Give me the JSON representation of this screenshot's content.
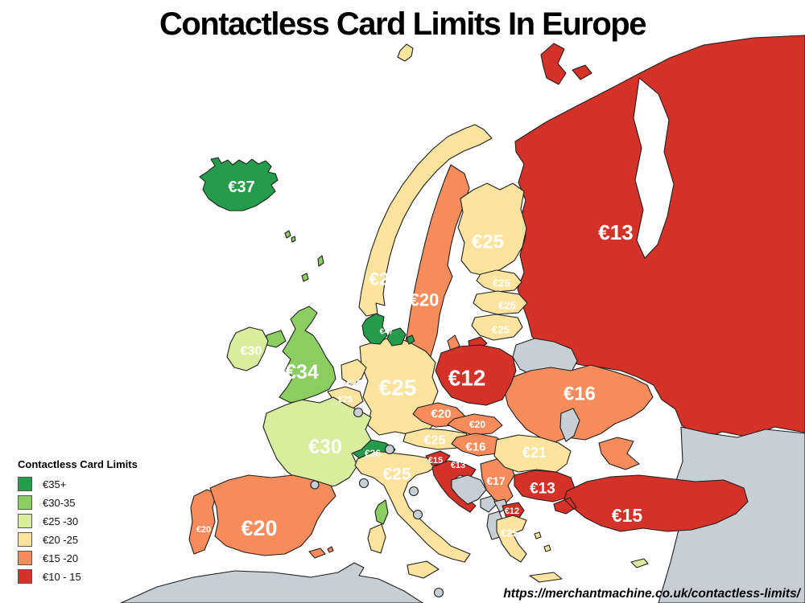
{
  "title": "Contactless Card Limits In Europe",
  "source_url": "https://merchantmachine.co.uk/contactless-limits/",
  "legend": {
    "title": "Contactless Card Limits",
    "items": [
      {
        "id": "b35",
        "label": "€35+",
        "color": "#259b4c"
      },
      {
        "id": "b30",
        "label": "€30-35",
        "color": "#8bcd60"
      },
      {
        "id": "b25",
        "label": "€25 -30",
        "color": "#d8ed9d"
      },
      {
        "id": "b20",
        "label": "€20 -25",
        "color": "#fce49e"
      },
      {
        "id": "b15",
        "label": "€15 -20",
        "color": "#f68c5c"
      },
      {
        "id": "b10",
        "label": "€10 - 15",
        "color": "#d43128"
      }
    ],
    "no_data_color": "#c8cfd4"
  },
  "map": {
    "countries": [
      {
        "id": "russia",
        "name": "Russia",
        "label": "€13",
        "bin": "b10"
      },
      {
        "id": "caucasus-mideast",
        "name": "Caucasus / Middle East (no data)",
        "label": "",
        "bin": "nd"
      },
      {
        "id": "north-africa",
        "name": "North Africa (no data)",
        "label": "",
        "bin": "nd"
      },
      {
        "id": "norway",
        "name": "Norway",
        "label": "€20",
        "bin": "b20"
      },
      {
        "id": "sweden",
        "name": "Sweden",
        "label": "€20",
        "bin": "b15"
      },
      {
        "id": "finland",
        "name": "Finland",
        "label": "€25",
        "bin": "b20"
      },
      {
        "id": "estonia",
        "name": "Estonia",
        "label": "€25",
        "bin": "b20"
      },
      {
        "id": "latvia",
        "name": "Latvia",
        "label": "€25",
        "bin": "b20"
      },
      {
        "id": "lithuania",
        "name": "Lithuania",
        "label": "€25",
        "bin": "b20"
      },
      {
        "id": "kaliningrad",
        "name": "Russia (Kaliningrad)",
        "label": "",
        "bin": "b10"
      },
      {
        "id": "belarus",
        "name": "Belarus (no data)",
        "label": "",
        "bin": "nd"
      },
      {
        "id": "ukraine",
        "name": "Ukraine",
        "label": "€16",
        "bin": "b15"
      },
      {
        "id": "moldova",
        "name": "Moldova (no data)",
        "label": "",
        "bin": "nd"
      },
      {
        "id": "poland",
        "name": "Poland",
        "label": "€12",
        "bin": "b10"
      },
      {
        "id": "germany",
        "name": "Germany",
        "label": "€25",
        "bin": "b20"
      },
      {
        "id": "netherlands",
        "name": "Netherlands",
        "label": "€25",
        "bin": "b20"
      },
      {
        "id": "belgium",
        "name": "Belgium",
        "label": "€25",
        "bin": "b20"
      },
      {
        "id": "czechia",
        "name": "Czech Republic",
        "label": "€20",
        "bin": "b15"
      },
      {
        "id": "slovakia",
        "name": "Slovakia",
        "label": "€20",
        "bin": "b15"
      },
      {
        "id": "austria",
        "name": "Austria",
        "label": "€25",
        "bin": "b20"
      },
      {
        "id": "switzerland",
        "name": "Switzerland",
        "label": "€36",
        "bin": "b35"
      },
      {
        "id": "hungary",
        "name": "Hungary",
        "label": "€16",
        "bin": "b15"
      },
      {
        "id": "france",
        "name": "France",
        "label": "€30",
        "bin": "b25"
      },
      {
        "id": "corsica",
        "name": "Corsica",
        "label": "",
        "bin": "b30"
      },
      {
        "id": "uk",
        "name": "United Kingdom",
        "label": "€34",
        "bin": "b30"
      },
      {
        "id": "ireland",
        "name": "Ireland",
        "label": "€30",
        "bin": "b25"
      },
      {
        "id": "faroe-islands",
        "name": "Faroe Islands",
        "label": "",
        "bin": "b30"
      },
      {
        "id": "portugal",
        "name": "Portugal",
        "label": "€20",
        "bin": "b15"
      },
      {
        "id": "spain",
        "name": "Spain",
        "label": "€20",
        "bin": "b15"
      },
      {
        "id": "italy",
        "name": "Italy",
        "label": "€25",
        "bin": "b20"
      },
      {
        "id": "slovenia",
        "name": "Slovenia",
        "label": "€15",
        "bin": "b10"
      },
      {
        "id": "croatia",
        "name": "Croatia",
        "label": "€13",
        "bin": "b10"
      },
      {
        "id": "bosnia",
        "name": "Bosnia (no data)",
        "label": "",
        "bin": "nd"
      },
      {
        "id": "serbia",
        "name": "Serbia",
        "label": "€17",
        "bin": "b15"
      },
      {
        "id": "montenegro",
        "name": "Montenegro (no data)",
        "label": "",
        "bin": "nd"
      },
      {
        "id": "kosovo",
        "name": "Kosovo (no data)",
        "label": "",
        "bin": "nd"
      },
      {
        "id": "albania",
        "name": "Albania (no data)",
        "label": "",
        "bin": "nd"
      },
      {
        "id": "north-macedonia",
        "name": "North Macedonia",
        "label": "€12",
        "bin": "b10"
      },
      {
        "id": "bulgaria",
        "name": "Bulgaria",
        "label": "€13",
        "bin": "b10"
      },
      {
        "id": "romania",
        "name": "Romania",
        "label": "€21",
        "bin": "b20"
      },
      {
        "id": "greece",
        "name": "Greece",
        "label": "€25",
        "bin": "b20"
      },
      {
        "id": "turkey",
        "name": "Turkey",
        "label": "€15",
        "bin": "b10"
      },
      {
        "id": "cyprus",
        "name": "Cyprus",
        "label": "",
        "bin": "b25"
      },
      {
        "id": "denmark",
        "name": "Denmark",
        "label": "€47",
        "bin": "b35"
      },
      {
        "id": "iceland",
        "name": "Iceland",
        "label": "€37",
        "bin": "b35"
      },
      {
        "id": "luxembourg",
        "name": "Luxembourg (no data)",
        "label": "",
        "bin": "nd"
      },
      {
        "id": "liechtenstein",
        "name": "Liechtenstein (no data)",
        "label": "",
        "bin": "nd"
      },
      {
        "id": "monaco",
        "name": "Monaco (no data)",
        "label": "",
        "bin": "nd"
      },
      {
        "id": "san-marino",
        "name": "San Marino (no data)",
        "label": "",
        "bin": "nd"
      },
      {
        "id": "vatican",
        "name": "Vatican (no data)",
        "label": "",
        "bin": "nd"
      },
      {
        "id": "andorra",
        "name": "Andorra (no data)",
        "label": "",
        "bin": "nd"
      },
      {
        "id": "malta",
        "name": "Malta (no data)",
        "label": "",
        "bin": "nd"
      }
    ]
  }
}
